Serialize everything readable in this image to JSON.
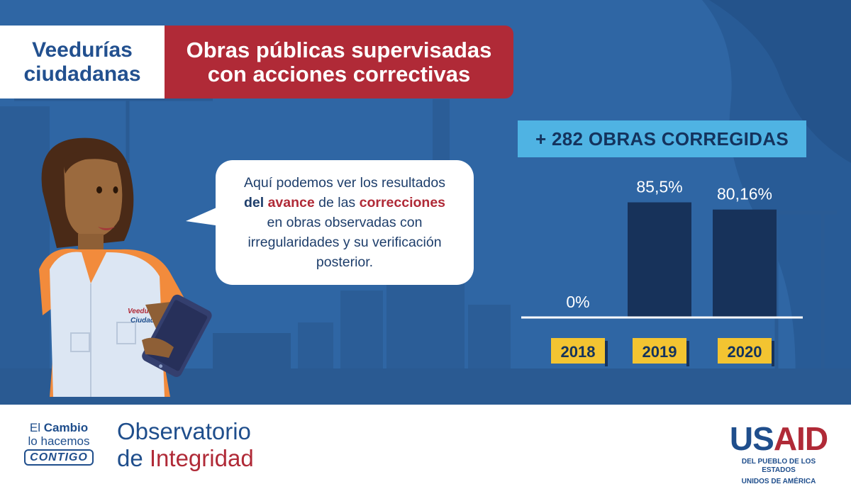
{
  "header": {
    "left_line1": "Veedurías",
    "left_line2": "ciudadanas",
    "right_line1": "Obras públicas supervisadas",
    "right_line2": "con acciones correctivas"
  },
  "badge": "+ 282 OBRAS CORREGIDAS",
  "bubble": {
    "p1": "Aquí podemos ver los resultados",
    "p2a": "del",
    "p2b": "avance",
    "p2c": "de las",
    "p2d": "correcciones",
    "p3": "en obras observadas con",
    "p4": "irregularidades y su verificación",
    "p5": "posterior."
  },
  "vest_label": "Veeduría Ciudadana",
  "chart_data": {
    "type": "bar",
    "categories": [
      "2018",
      "2019",
      "2020"
    ],
    "values": [
      0,
      85.5,
      80.16
    ],
    "data_labels": [
      "0%",
      "85,5%",
      "80,16%"
    ],
    "ylim": [
      0,
      100
    ],
    "xlabel": "",
    "ylabel": "",
    "bar_color": "#17325a",
    "category_bg": "#f3c431",
    "grid": false
  },
  "footer": {
    "cambio_line1a": "El",
    "cambio_line1b": "Cambio",
    "cambio_line2": "lo hacemos",
    "cambio_line3": "CONTIGO",
    "obs_line1": "Observatorio",
    "obs_line2a": "de",
    "obs_line2b": "Integridad",
    "usaid_us": "US",
    "usaid_aid": "AID",
    "usaid_sub1": "DEL PUEBLO DE LOS ESTADOS",
    "usaid_sub2": "UNIDOS DE AMÉRICA"
  },
  "colors": {
    "background": "#2f66a4",
    "accent_red": "#b02a37",
    "accent_blue": "#4fb3e3",
    "navy": "#17325a",
    "yellow": "#f3c431"
  }
}
